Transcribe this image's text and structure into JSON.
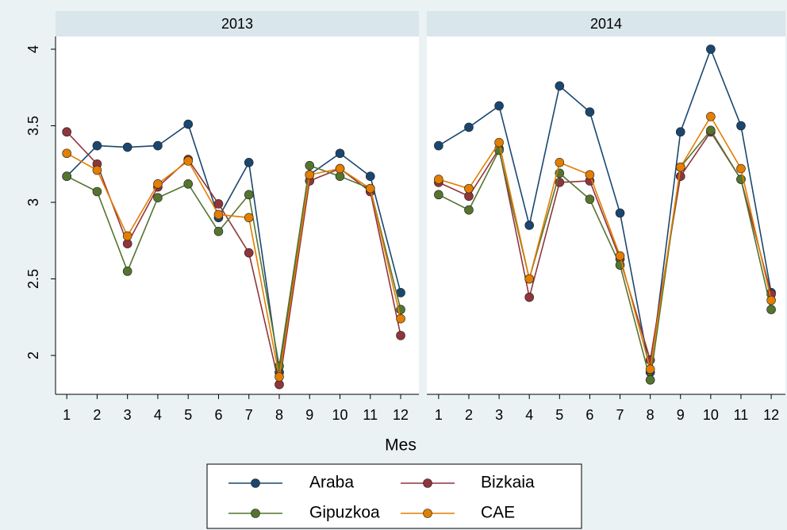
{
  "chart_data": [
    {
      "type": "line",
      "title": "2013",
      "xlabel": "Mes",
      "legend": "bottom",
      "x": [
        1,
        2,
        3,
        4,
        5,
        6,
        7,
        8,
        9,
        10,
        11,
        12
      ],
      "xlim": [
        0.63,
        12.6
      ],
      "xticks": [
        1,
        2,
        3,
        4,
        5,
        6,
        7,
        8,
        9,
        10,
        11,
        12
      ],
      "ylim": [
        1.746,
        4.083
      ],
      "yticks": [
        2,
        2.5,
        3,
        3.5,
        4
      ],
      "series": [
        {
          "name": "Araba",
          "color": "#1a476f",
          "values": [
            3.17,
            3.37,
            3.36,
            3.37,
            3.51,
            2.9,
            3.26,
            1.89,
            3.18,
            3.32,
            3.17,
            2.41
          ]
        },
        {
          "name": "Bizkaia",
          "color": "#90353b",
          "values": [
            3.46,
            3.25,
            2.73,
            3.1,
            3.28,
            2.99,
            2.67,
            1.81,
            3.14,
            3.22,
            3.07,
            2.13
          ]
        },
        {
          "name": "Gipuzkoa",
          "color": "#55752f",
          "values": [
            3.17,
            3.07,
            2.55,
            3.03,
            3.12,
            2.81,
            3.05,
            1.93,
            3.24,
            3.17,
            3.09,
            2.3
          ]
        },
        {
          "name": "CAE",
          "color": "#e37e00",
          "values": [
            3.32,
            3.21,
            2.78,
            3.12,
            3.27,
            2.92,
            2.9,
            1.86,
            3.18,
            3.22,
            3.09,
            2.24
          ]
        }
      ]
    },
    {
      "type": "line",
      "title": "2014",
      "x": [
        1,
        2,
        3,
        4,
        5,
        6,
        7,
        8,
        9,
        10,
        11,
        12
      ],
      "xlim": [
        0.61,
        12.47
      ],
      "xticks": [
        1,
        2,
        3,
        4,
        5,
        6,
        7,
        8,
        9,
        10,
        11,
        12
      ],
      "ylim": [
        1.746,
        4.083
      ],
      "series": [
        {
          "values": [
            3.37,
            3.49,
            3.63,
            2.85,
            3.76,
            3.59,
            2.93,
            1.89,
            3.46,
            4.0,
            3.5,
            2.41
          ]
        },
        {
          "values": [
            3.13,
            3.04,
            3.35,
            2.38,
            3.13,
            3.14,
            2.63,
            1.97,
            3.17,
            3.46,
            3.15,
            2.4
          ]
        },
        {
          "values": [
            3.05,
            2.95,
            3.34,
            2.5,
            3.19,
            3.02,
            2.59,
            1.84,
            3.23,
            3.47,
            3.15,
            2.3
          ]
        },
        {
          "values": [
            3.15,
            3.09,
            3.39,
            2.5,
            3.26,
            3.18,
            2.65,
            1.91,
            3.23,
            3.56,
            3.22,
            2.36
          ]
        }
      ]
    }
  ]
}
